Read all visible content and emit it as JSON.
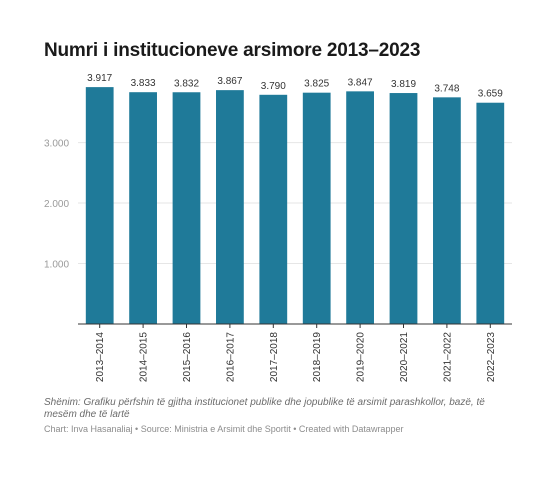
{
  "chart_data": {
    "type": "bar",
    "title": "Numri i institucioneve arsimore 2013–2023",
    "categories": [
      "2013–2014",
      "2014–2015",
      "2015–2016",
      "2016–2017",
      "2017–2018",
      "2018–2019",
      "2019–2020",
      "2020–2021",
      "2021–2022",
      "2022–2023"
    ],
    "values": [
      3917,
      3833,
      3832,
      3867,
      3790,
      3825,
      3847,
      3819,
      3748,
      3659
    ],
    "value_labels": [
      "3.917",
      "3.833",
      "3.832",
      "3.867",
      "3.790",
      "3.825",
      "3.847",
      "3.819",
      "3.748",
      "3.659"
    ],
    "yticks": [
      1000,
      2000,
      3000
    ],
    "ytick_labels": [
      "1.000",
      "2.000",
      "3.000"
    ],
    "ylim": [
      0,
      4200
    ],
    "xlabel": "",
    "ylabel": "",
    "grid": true,
    "bar_color": "#1f7a99",
    "note": "Shënim: Grafiku përfshin të gjitha institucionet publike dhe jopublike të arsimit parashkollor, bazë, të mesëm dhe të lartë",
    "credit": "Chart: Inva Hasanaliaj • Source: Ministria e Arsimit dhe Sportit • Created with Datawrapper"
  }
}
